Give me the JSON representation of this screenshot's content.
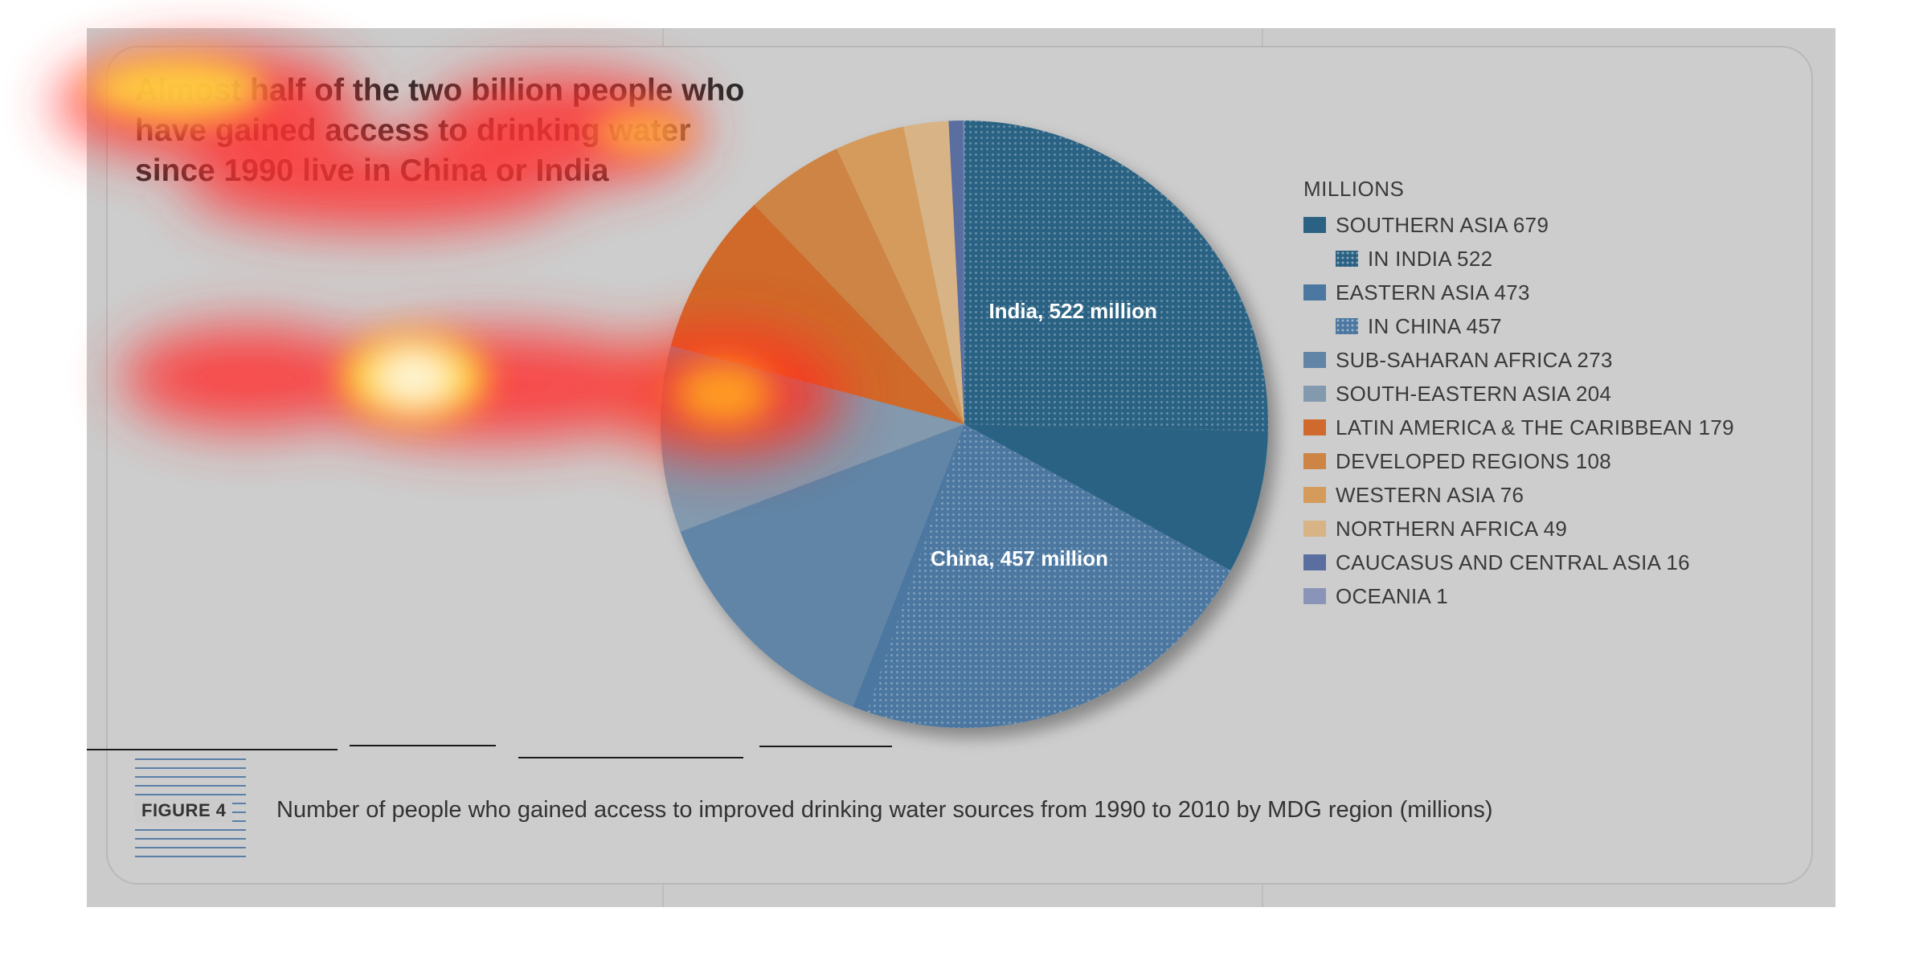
{
  "headline": "Almost half of the two billion people who have gained access to drinking water since 1990 live in China or India",
  "figure_label": "FIGURE 4",
  "caption": "Number of people who gained access to improved drinking water sources from 1990 to 2010 by MDG region (millions)",
  "legend_unit": "MILLIONS",
  "chart_data": {
    "type": "pie",
    "title": "Almost half of the two billion people who have gained access to drinking water since 1990 live in China or India",
    "unit": "MILLIONS",
    "legend_position": "right",
    "slices": [
      {
        "label": "SOUTHERN ASIA 679",
        "name": "SOUTHERN ASIA",
        "value": 679,
        "color": "#2b6283",
        "sub": {
          "label": "IN INDIA 522",
          "name": "IN INDIA",
          "value": 522,
          "color": "#2b6283",
          "slice_label": "India, 522 million"
        }
      },
      {
        "label": "EASTERN ASIA 473",
        "name": "EASTERN ASIA",
        "value": 473,
        "color": "#4b77a0",
        "sub": {
          "label": "IN CHINA 457",
          "name": "IN CHINA",
          "value": 457,
          "color": "#4b77a0",
          "slice_label": "China, 457 million"
        }
      },
      {
        "label": "SUB-SAHARAN AFRICA 273",
        "name": "SUB-SAHARAN AFRICA",
        "value": 273,
        "color": "#6185a6"
      },
      {
        "label": "SOUTH-EASTERN ASIA 204",
        "name": "SOUTH-EASTERN ASIA",
        "value": 204,
        "color": "#8399ae"
      },
      {
        "label": "LATIN AMERICA & THE CARIBBEAN 179",
        "name": "LATIN AMERICA & THE CARIBBEAN",
        "value": 179,
        "color": "#cf6a2c"
      },
      {
        "label": "DEVELOPED REGIONS 108",
        "name": "DEVELOPED REGIONS",
        "value": 108,
        "color": "#cd8444"
      },
      {
        "label": "WESTERN ASIA 76",
        "name": "WESTERN ASIA",
        "value": 76,
        "color": "#d49b5b"
      },
      {
        "label": "NORTHERN AFRICA 49",
        "name": "NORTHERN AFRICA",
        "value": 49,
        "color": "#d8b385"
      },
      {
        "label": "CAUCASUS AND CENTRAL ASIA 16",
        "name": "CAUCASUS AND CENTRAL ASIA",
        "value": 16,
        "color": "#5a6ea0"
      },
      {
        "label": "OCEANIA 1",
        "name": "OCEANIA",
        "value": 1,
        "color": "#8a94b8"
      }
    ]
  }
}
